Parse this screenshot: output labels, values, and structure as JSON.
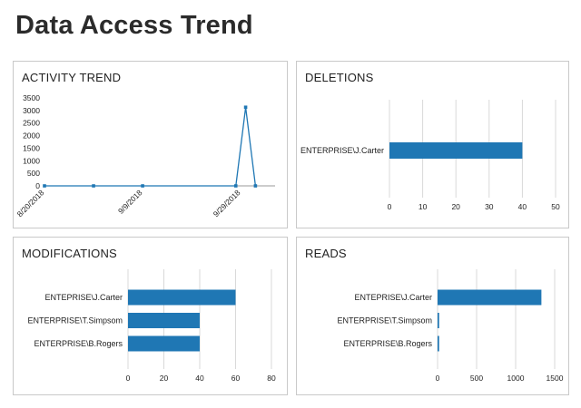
{
  "page": {
    "title": "Data Access Trend"
  },
  "colors": {
    "series": "#1f77b4",
    "grid": "#d9d9d9",
    "axis": "#7f7f7f"
  },
  "chart_data": [
    {
      "id": "activity",
      "type": "line",
      "title": "ACTIVITY TREND",
      "x_tick_labels": [
        "8/20/2018",
        "9/9/2018",
        "9/29/2018"
      ],
      "x_ticks": [
        "2018-08-20",
        "2018-09-09",
        "2018-09-29"
      ],
      "x_range": [
        "2018-08-20",
        "2018-10-06"
      ],
      "points": [
        {
          "x": "2018-08-20",
          "y": 0
        },
        {
          "x": "2018-08-30",
          "y": 0
        },
        {
          "x": "2018-09-09",
          "y": 0
        },
        {
          "x": "2018-09-28",
          "y": 0
        },
        {
          "x": "2018-09-30",
          "y": 3130
        },
        {
          "x": "2018-10-02",
          "y": 0
        }
      ],
      "y_ticks": [
        "0",
        "500",
        "1000",
        "1500",
        "2000",
        "2500",
        "3000",
        "3500"
      ],
      "ylim": [
        0,
        3500
      ],
      "grid": false
    },
    {
      "id": "deletions",
      "type": "bar",
      "orientation": "horizontal",
      "title": "DELETIONS",
      "categories": [
        "ENTERPRISE\\J.Carter"
      ],
      "values": [
        40
      ],
      "x_ticks": [
        "0",
        "10",
        "20",
        "30",
        "40",
        "50"
      ],
      "xlim": [
        0,
        50
      ],
      "grid": true
    },
    {
      "id": "modifications",
      "type": "bar",
      "orientation": "horizontal",
      "title": "MODIFICATIONS",
      "categories": [
        "ENTEPRISE\\J.Carter",
        "ENTERPRISE\\T.Simpsom",
        "ENTERPRISE\\B.Rogers"
      ],
      "values": [
        60,
        40,
        40
      ],
      "x_ticks": [
        "0",
        "20",
        "40",
        "60",
        "80"
      ],
      "xlim": [
        0,
        80
      ],
      "grid": true
    },
    {
      "id": "reads",
      "type": "bar",
      "orientation": "horizontal",
      "title": "READS",
      "categories": [
        "ENTEPRISE\\J.Carter",
        "ENTERPRISE\\T.Simpsom",
        "ENTERPRISE\\B.Rogers"
      ],
      "values": [
        1330,
        20,
        20
      ],
      "x_ticks": [
        "0",
        "500",
        "1000",
        "1500"
      ],
      "xlim": [
        0,
        1500
      ],
      "grid": true
    }
  ]
}
